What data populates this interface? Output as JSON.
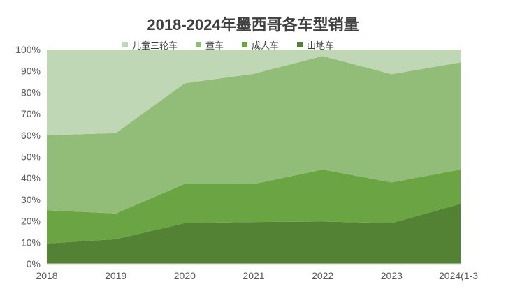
{
  "chart_data": {
    "type": "area",
    "stacked": true,
    "normalized": true,
    "title": "2018-2024年墨西哥各车型销量",
    "x": [
      "2018",
      "2019",
      "2020",
      "2021",
      "2022",
      "2023",
      "2024(1-3"
    ],
    "y_ticks": [
      "0%",
      "10%",
      "20%",
      "30%",
      "40%",
      "50%",
      "60%",
      "70%",
      "80%",
      "90%",
      "100%"
    ],
    "ylim": [
      0,
      100
    ],
    "legend_position": "top",
    "grid": false,
    "series": [
      {
        "name": "山地车",
        "color": "#548235",
        "values": [
          9.5,
          11.5,
          19,
          19.5,
          19.7,
          19,
          28
        ]
      },
      {
        "name": "成人车",
        "color": "#6aa443",
        "values": [
          15.5,
          12,
          18.3,
          17.7,
          24.3,
          19,
          16
        ]
      },
      {
        "name": "童车",
        "color": "#92bd78",
        "values": [
          35,
          37.5,
          47,
          51.5,
          53,
          50.5,
          50
        ]
      },
      {
        "name": "儿童三轮车",
        "color": "#bfd7b4",
        "values": [
          40,
          39,
          15.7,
          11.3,
          3,
          11.5,
          6
        ]
      }
    ]
  }
}
